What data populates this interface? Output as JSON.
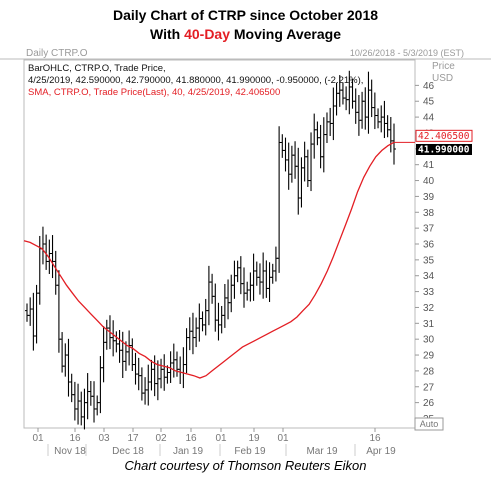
{
  "title": {
    "line1": "Daily Chart of CTRP since October 2018",
    "line2_pre": "With ",
    "line2_accent": "40-Day",
    "line2_post": " Moving Average",
    "accent_color": "#e31e24"
  },
  "credit": "Chart courtesy of Thomson Reuters Eikon",
  "panel": {
    "name": "Daily CTRP.O",
    "date_range": "10/26/2018 - 5/3/2019 (EST)",
    "price_header": "Price",
    "currency": "USD",
    "auto_label": "Auto",
    "legend_bar_line1": "BarOHLC, CTRP.O, Trade Price,",
    "legend_bar_line2": "4/25/2019, 42.590000, 42.790000, 41.880000, 41.990000, -0.950000, (-2.21%),",
    "legend_sma": "SMA, CTRP.O, Trade Price(Last), 40, 4/25/2019, 42.406500",
    "sma_tag": "42.406500",
    "price_tag": "41.990000",
    "bar_color": "#000000",
    "sma_color": "#e31e24",
    "background": "#ffffff"
  },
  "chart_data": {
    "type": "ohlc_with_line",
    "ylim": [
      24.4,
      47.6
    ],
    "y_ticks": [
      25,
      26,
      27,
      28,
      29,
      30,
      31,
      32,
      33,
      34,
      35,
      36,
      37,
      38,
      39,
      40,
      41,
      42,
      43,
      44,
      45,
      46
    ],
    "x_ticks_days": [
      "01",
      "16",
      "03",
      "17",
      "02",
      "16",
      "01",
      "19",
      "01",
      "16"
    ],
    "x_ticks_months": [
      "Nov 18",
      "Dec 18",
      "Jan 19",
      "Feb 19",
      "Mar 19",
      "Apr 19"
    ],
    "series": [
      {
        "name": "BarOHLC, CTRP.O, Trade Price",
        "kind": "ohlc",
        "closes": [
          31.5,
          31.9,
          30.2,
          32.9,
          35.7,
          36.0,
          34.9,
          35.4,
          34.9,
          33.4,
          30.0,
          28.3,
          29.0,
          27.3,
          26.5,
          25.6,
          26.1,
          25.1,
          26.0,
          26.7,
          26.4,
          25.6,
          26.0,
          28.2,
          29.8,
          30.7,
          30.1,
          29.9,
          29.7,
          29.3,
          28.6,
          29.2,
          29.6,
          28.4,
          27.8,
          27.7,
          26.6,
          26.8,
          27.3,
          28.1,
          27.2,
          27.5,
          28.1,
          27.6,
          27.9,
          28.5,
          28.7,
          28.1,
          27.9,
          28.4,
          30.1,
          30.5,
          30.1,
          30.7,
          31.3,
          30.9,
          31.8,
          33.6,
          32.7,
          31.2,
          30.9,
          31.5,
          32.6,
          32.3,
          33.4,
          34.0,
          34.5,
          33.5,
          32.9,
          33.1,
          33.4,
          34.3,
          33.9,
          33.6,
          34.3,
          33.2,
          33.9,
          34.3,
          35.1,
          42.4,
          41.9,
          41.3,
          40.4,
          41.6,
          40.9,
          38.9,
          40.8,
          41.5,
          40.0,
          42.3,
          43.2,
          42.7,
          41.5,
          42.9,
          43.7,
          43.6,
          44.7,
          45.5,
          45.7,
          45.2,
          45.1,
          45.9,
          45.0,
          44.3,
          43.8,
          45.0,
          44.0,
          45.7,
          44.6,
          44.1,
          43.7,
          44.0,
          43.6,
          43.2,
          42.5,
          41.99
        ]
      },
      {
        "name": "SMA, CTRP.O, Trade Price(Last), 40",
        "kind": "line",
        "values": [
          36.2,
          36.1,
          35.9,
          35.7,
          35.2,
          34.6,
          34.0,
          33.4,
          32.9,
          32.4,
          32.0,
          31.6,
          31.2,
          30.8,
          30.5,
          30.2,
          29.9,
          29.6,
          29.4,
          29.1,
          28.9,
          28.6,
          28.4,
          28.3,
          28.2,
          28.0,
          27.9,
          27.8,
          27.7,
          27.55,
          27.7,
          28.0,
          28.3,
          28.6,
          28.9,
          29.2,
          29.5,
          29.7,
          29.9,
          30.1,
          30.3,
          30.5,
          30.7,
          30.9,
          31.1,
          31.4,
          31.8,
          32.2,
          32.8,
          33.5,
          34.3,
          35.2,
          36.2,
          37.2,
          38.2,
          39.3,
          40.2,
          40.9,
          41.5,
          41.9,
          42.2,
          42.41
        ]
      }
    ]
  }
}
